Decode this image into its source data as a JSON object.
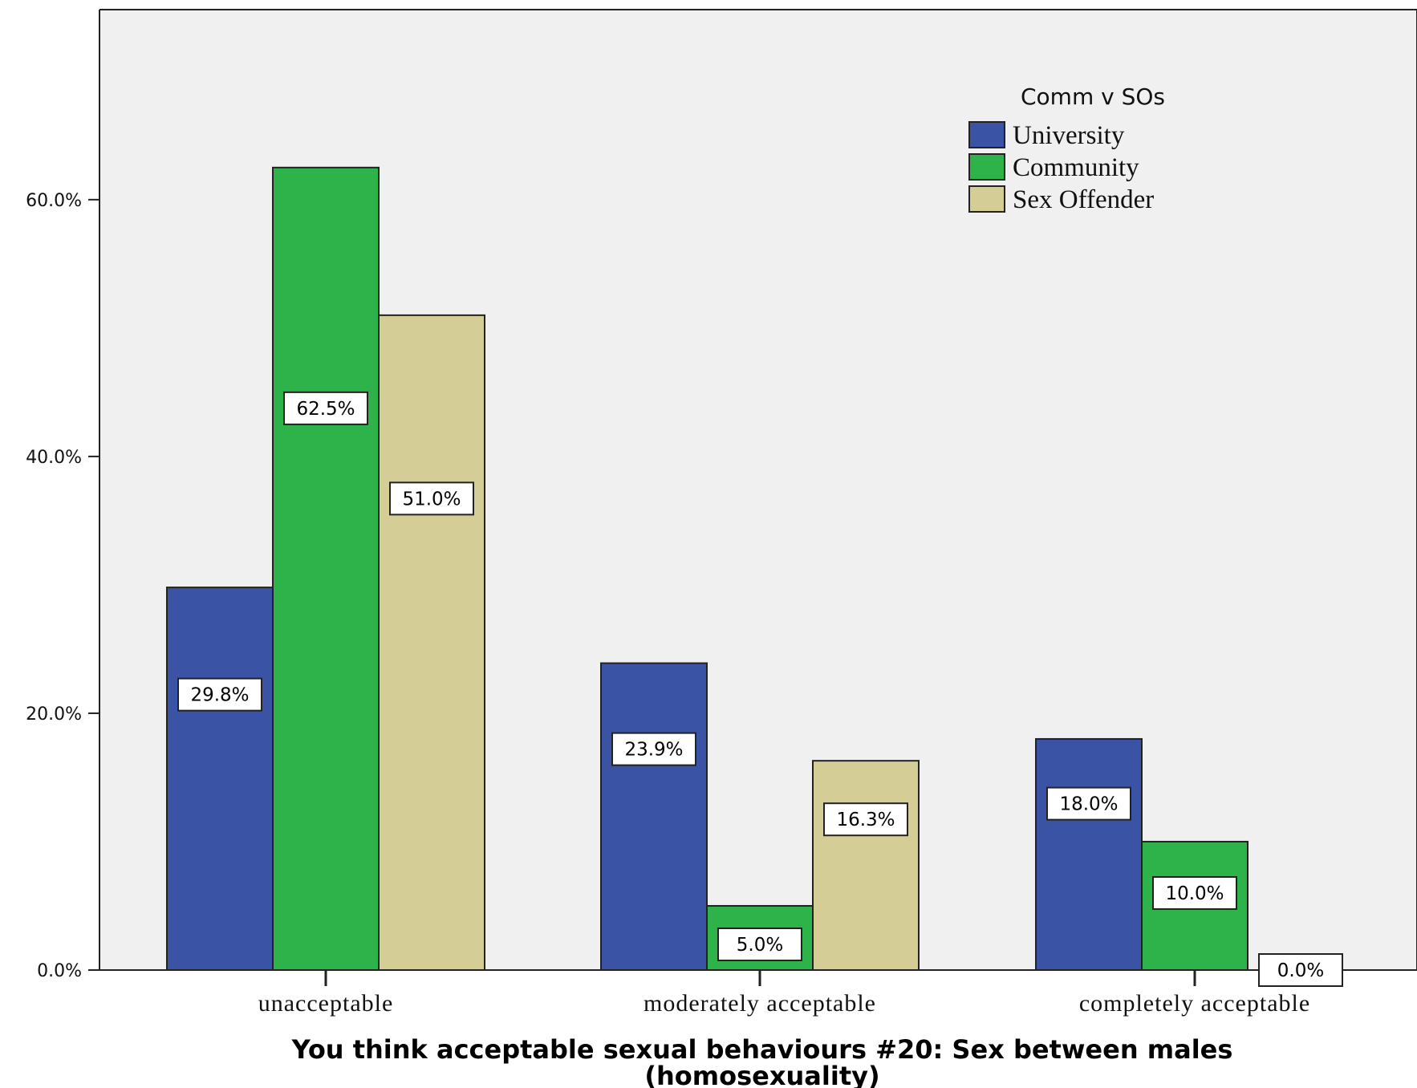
{
  "chart_data": {
    "type": "bar",
    "title": "",
    "xlabel_lines": [
      "You think acceptable sexual behaviours #20: Sex between males",
      "(homosexuality)"
    ],
    "ylabel": "",
    "categories": [
      "unacceptable",
      "moderately acceptable",
      "completely acceptable"
    ],
    "series": [
      {
        "name": "University",
        "color": "#3a53a4",
        "values": [
          29.8,
          23.9,
          18.0
        ],
        "labels": [
          "29.8%",
          "23.9%",
          "18.0%"
        ]
      },
      {
        "name": "Community",
        "color": "#2db34a",
        "values": [
          62.5,
          5.0,
          10.0
        ],
        "labels": [
          "62.5%",
          "5.0%",
          "10.0%"
        ]
      },
      {
        "name": "Sex Offender",
        "color": "#d4cd96",
        "values": [
          51.0,
          16.3,
          0.0
        ],
        "labels": [
          "51.0%",
          "16.3%",
          "0.0%"
        ]
      }
    ],
    "legend": {
      "title": "Comm v SOs",
      "position": "top-right"
    },
    "yticks": [
      0,
      20,
      40,
      60
    ],
    "ytick_labels": [
      "0.0%",
      "20.0%",
      "40.0%",
      "60.0%"
    ],
    "ylim": [
      0,
      74.8
    ],
    "grid": false,
    "plot_background": "#f0f0f0"
  }
}
